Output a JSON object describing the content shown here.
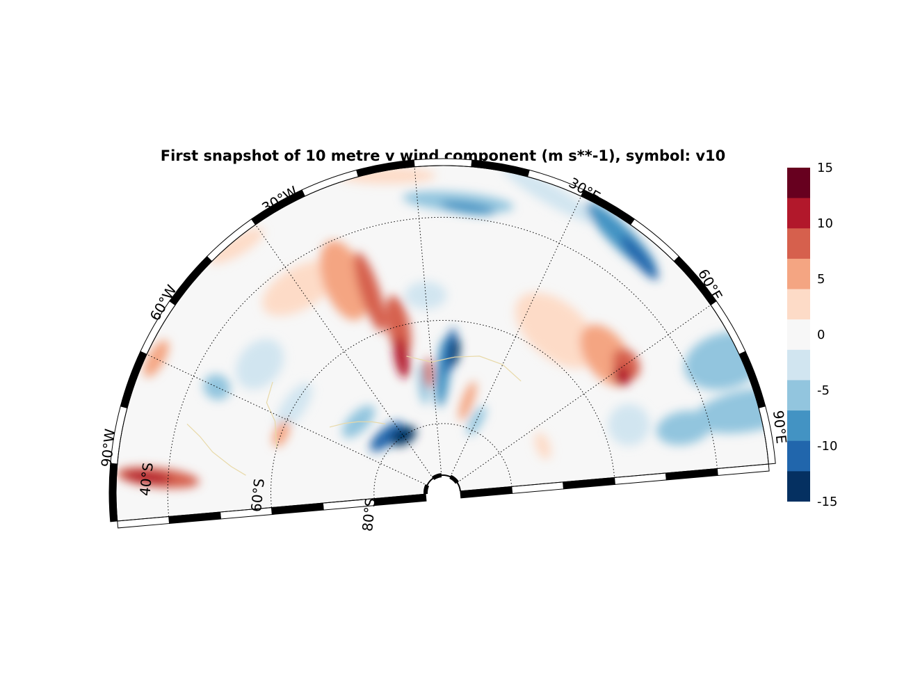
{
  "title": "First snapshot of 10 metre v wind component (m s**-1), symbol: v10",
  "map": {
    "projection": "polar (southern hemisphere sector)",
    "lon_range": [
      -90,
      90
    ],
    "lat_range": [
      -90,
      -30
    ],
    "lon_labels": [
      "90°W",
      "60°W",
      "30°W",
      "30°E",
      "60°E",
      "90°E"
    ],
    "lat_labels": [
      "40°S",
      "60°S",
      "80°S"
    ],
    "gridlines": "dotted",
    "coastline_color": "#e8d9a8"
  },
  "colorbar": {
    "ticks": [
      "15",
      "10",
      "5",
      "0",
      "-5",
      "-10",
      "-15"
    ],
    "levels": [
      -15,
      -12.5,
      -10,
      -7.5,
      -5,
      -2.5,
      0,
      2.5,
      5,
      7.5,
      10,
      12.5,
      15
    ],
    "colors": [
      "#053061",
      "#2166ac",
      "#4393c3",
      "#92c5de",
      "#d1e5f0",
      "#f7f7f7",
      "#fddbc7",
      "#f4a582",
      "#d6604d",
      "#b2182b",
      "#67001f"
    ],
    "colormap": "RdBu_r"
  }
}
